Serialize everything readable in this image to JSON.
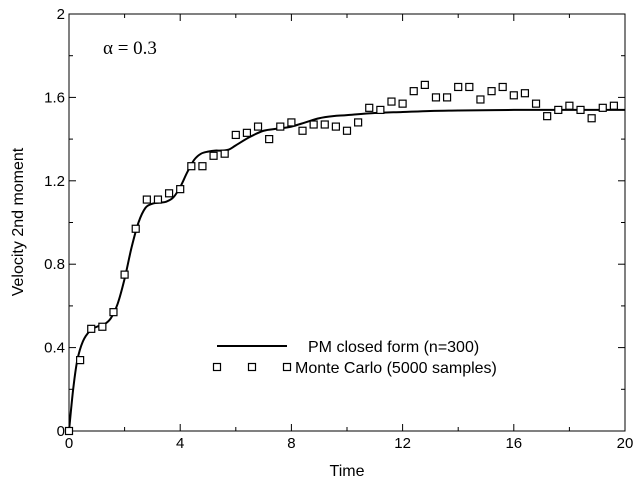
{
  "chart_data": {
    "type": "line",
    "xlabel": "Time",
    "ylabel": "Velocity 2nd moment",
    "xlim": [
      0,
      20
    ],
    "ylim": [
      0,
      2
    ],
    "x_ticks": [
      "0",
      "4",
      "8",
      "12",
      "16",
      "20"
    ],
    "y_ticks": [
      "0",
      "0.4",
      "0.8",
      "1.2",
      "1.6",
      "2"
    ],
    "annotation": "α = 0.3",
    "grid": false,
    "legend_position": "bottom-center",
    "series": [
      {
        "name": "PM closed form (n=300)",
        "style": "line",
        "color": "#000000",
        "points": [
          [
            0.0,
            0.0
          ],
          [
            0.15,
            0.2
          ],
          [
            0.3,
            0.34
          ],
          [
            0.5,
            0.43
          ],
          [
            0.75,
            0.48
          ],
          [
            1.0,
            0.5
          ],
          [
            1.25,
            0.51
          ],
          [
            1.5,
            0.54
          ],
          [
            1.75,
            0.61
          ],
          [
            2.0,
            0.73
          ],
          [
            2.25,
            0.88
          ],
          [
            2.5,
            1.0
          ],
          [
            2.75,
            1.07
          ],
          [
            3.0,
            1.09
          ],
          [
            3.25,
            1.095
          ],
          [
            3.5,
            1.1
          ],
          [
            3.75,
            1.12
          ],
          [
            4.0,
            1.17
          ],
          [
            4.25,
            1.24
          ],
          [
            4.5,
            1.3
          ],
          [
            4.75,
            1.33
          ],
          [
            5.0,
            1.34
          ],
          [
            5.25,
            1.345
          ],
          [
            5.5,
            1.345
          ],
          [
            5.75,
            1.35
          ],
          [
            6.0,
            1.37
          ],
          [
            6.5,
            1.41
          ],
          [
            7.0,
            1.44
          ],
          [
            7.5,
            1.45
          ],
          [
            8.0,
            1.46
          ],
          [
            8.5,
            1.48
          ],
          [
            9.0,
            1.5
          ],
          [
            9.5,
            1.51
          ],
          [
            10.0,
            1.515
          ],
          [
            11.0,
            1.525
          ],
          [
            12.0,
            1.53
          ],
          [
            13.0,
            1.535
          ],
          [
            14.0,
            1.537
          ],
          [
            16.0,
            1.54
          ],
          [
            18.0,
            1.54
          ],
          [
            20.0,
            1.54
          ]
        ]
      },
      {
        "name": "Monte Carlo (5000 samples)",
        "style": "markers",
        "marker": "open-square",
        "color": "#000000",
        "points": [
          [
            0.0,
            0.0
          ],
          [
            0.4,
            0.34
          ],
          [
            0.8,
            0.49
          ],
          [
            1.2,
            0.5
          ],
          [
            1.6,
            0.57
          ],
          [
            2.0,
            0.75
          ],
          [
            2.4,
            0.97
          ],
          [
            2.8,
            1.11
          ],
          [
            3.2,
            1.11
          ],
          [
            3.6,
            1.14
          ],
          [
            4.0,
            1.16
          ],
          [
            4.4,
            1.27
          ],
          [
            4.8,
            1.27
          ],
          [
            5.2,
            1.32
          ],
          [
            5.6,
            1.33
          ],
          [
            6.0,
            1.42
          ],
          [
            6.4,
            1.43
          ],
          [
            6.8,
            1.46
          ],
          [
            7.2,
            1.4
          ],
          [
            7.6,
            1.46
          ],
          [
            8.0,
            1.48
          ],
          [
            8.4,
            1.44
          ],
          [
            8.8,
            1.47
          ],
          [
            9.2,
            1.47
          ],
          [
            9.6,
            1.46
          ],
          [
            10.0,
            1.44
          ],
          [
            10.4,
            1.48
          ],
          [
            10.8,
            1.55
          ],
          [
            11.2,
            1.54
          ],
          [
            11.6,
            1.58
          ],
          [
            12.0,
            1.57
          ],
          [
            12.4,
            1.63
          ],
          [
            12.8,
            1.66
          ],
          [
            13.2,
            1.6
          ],
          [
            13.6,
            1.6
          ],
          [
            14.0,
            1.65
          ],
          [
            14.4,
            1.65
          ],
          [
            14.8,
            1.59
          ],
          [
            15.2,
            1.63
          ],
          [
            15.6,
            1.65
          ],
          [
            16.0,
            1.61
          ],
          [
            16.4,
            1.62
          ],
          [
            16.8,
            1.57
          ],
          [
            17.2,
            1.51
          ],
          [
            17.6,
            1.54
          ],
          [
            18.0,
            1.56
          ],
          [
            18.4,
            1.54
          ],
          [
            18.8,
            1.5
          ],
          [
            19.2,
            1.55
          ],
          [
            19.6,
            1.56
          ]
        ]
      }
    ]
  }
}
